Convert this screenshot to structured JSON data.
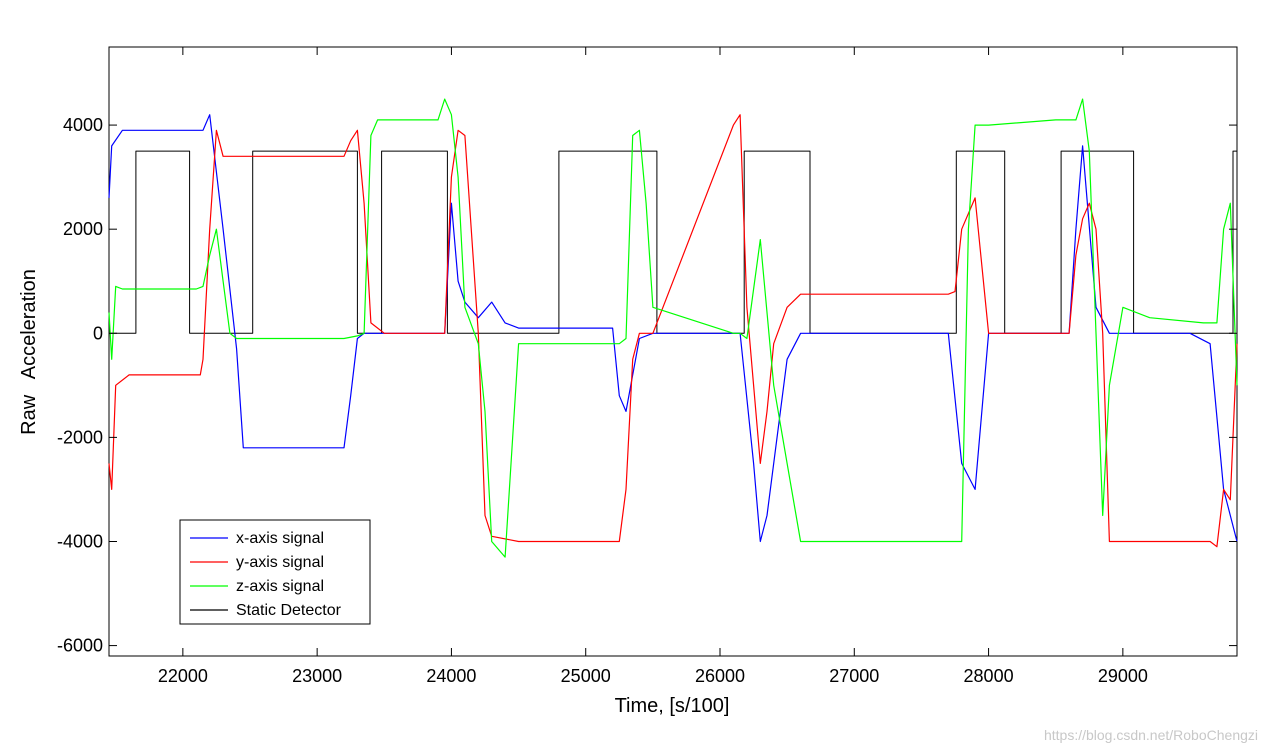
{
  "chart_data": {
    "type": "line",
    "title": "",
    "xlabel": "Time, [s/100]",
    "ylabel": "Raw   Acceleration",
    "xlim": [
      21450,
      29850
    ],
    "ylim": [
      -6200,
      5500
    ],
    "xticks": [
      22000,
      23000,
      24000,
      25000,
      26000,
      27000,
      28000,
      29000
    ],
    "yticks": [
      4000,
      2000,
      0,
      -2000,
      -4000,
      -6000
    ],
    "xtick_labels": [
      "22000",
      "23000",
      "24000",
      "25000",
      "26000",
      "27000",
      "28000",
      "29000"
    ],
    "ytick_labels": [
      "4000",
      "2000",
      "0",
      "-2000",
      "-4000",
      "-6000"
    ],
    "grid": false,
    "legend_position": "bottom-left",
    "series": [
      {
        "name": "x-axis signal",
        "color": "#0000ff",
        "x": [
          21450,
          21470,
          21550,
          21650,
          22000,
          22150,
          22200,
          22300,
          22400,
          22450,
          22600,
          23000,
          23200,
          23250,
          23300,
          23350,
          23400,
          23500,
          23900,
          23950,
          24000,
          24050,
          24100,
          24200,
          24300,
          24400,
          24500,
          24800,
          25200,
          25250,
          25300,
          25350,
          25400,
          25500,
          26000,
          26150,
          26250,
          26300,
          26350,
          26500,
          26600,
          27000,
          27500,
          27700,
          27800,
          27900,
          28000,
          28300,
          28500,
          28600,
          28650,
          28700,
          28800,
          28900,
          29000,
          29500,
          29650,
          29750,
          29850
        ],
        "y": [
          2600,
          3600,
          3900,
          3900,
          3900,
          3900,
          4200,
          2000,
          -300,
          -2200,
          -2200,
          -2200,
          -2200,
          -1200,
          -100,
          0,
          0,
          0,
          0,
          0,
          2500,
          1000,
          600,
          300,
          600,
          200,
          100,
          100,
          100,
          -1200,
          -1500,
          -800,
          -100,
          0,
          0,
          0,
          -2500,
          -4000,
          -3500,
          -500,
          0,
          0,
          0,
          0,
          -2500,
          -3000,
          0,
          0,
          0,
          0,
          2000,
          3600,
          500,
          0,
          0,
          0,
          -200,
          -3000,
          -4000
        ]
      },
      {
        "name": "y-axis signal",
        "color": "#ff0000",
        "x": [
          21450,
          21470,
          21500,
          21600,
          22000,
          22130,
          22150,
          22200,
          22250,
          22300,
          22350,
          22500,
          23000,
          23200,
          23250,
          23300,
          23350,
          23400,
          23500,
          23900,
          23950,
          24000,
          24050,
          24100,
          24200,
          24250,
          24300,
          24500,
          25200,
          25250,
          25300,
          25350,
          25400,
          25500,
          26100,
          26150,
          26200,
          26300,
          26350,
          26400,
          26500,
          26600,
          27000,
          27600,
          27700,
          27750,
          27800,
          27900,
          28000,
          28300,
          28600,
          28650,
          28700,
          28750,
          28800,
          28850,
          28900,
          29000,
          29600,
          29650,
          29700,
          29750,
          29800,
          29850
        ],
        "y": [
          -2500,
          -3000,
          -1000,
          -800,
          -800,
          -800,
          -500,
          2000,
          3900,
          3400,
          3400,
          3400,
          3400,
          3400,
          3700,
          3900,
          2500,
          200,
          0,
          0,
          0,
          3000,
          3900,
          3800,
          0,
          -3500,
          -3900,
          -4000,
          -4000,
          -4000,
          -3000,
          -500,
          0,
          0,
          4000,
          4200,
          500,
          -2500,
          -1500,
          -200,
          500,
          750,
          750,
          750,
          750,
          800,
          2000,
          2600,
          0,
          0,
          0,
          1500,
          2200,
          2500,
          2000,
          0,
          -4000,
          -4000,
          -4000,
          -4000,
          -4100,
          -3000,
          -3200,
          -200
        ]
      },
      {
        "name": "z-axis signal",
        "color": "#00ff00",
        "x": [
          21450,
          21470,
          21500,
          21550,
          22000,
          22100,
          22150,
          22200,
          22250,
          22300,
          22350,
          22400,
          23000,
          23200,
          23300,
          23350,
          23400,
          23450,
          23500,
          23900,
          23950,
          24000,
          24050,
          24100,
          24200,
          24250,
          24300,
          24400,
          24500,
          24800,
          25200,
          25250,
          25300,
          25350,
          25400,
          25450,
          25500,
          26100,
          26150,
          26200,
          26300,
          26400,
          26500,
          26600,
          27000,
          27600,
          27700,
          27800,
          27850,
          27900,
          28000,
          28500,
          28600,
          28650,
          28700,
          28750,
          28800,
          28850,
          28900,
          29000,
          29200,
          29600,
          29700,
          29750,
          29800,
          29850
        ],
        "y": [
          400,
          -500,
          900,
          850,
          850,
          850,
          900,
          1500,
          2000,
          1000,
          0,
          -100,
          -100,
          -100,
          -50,
          0,
          3800,
          4100,
          4100,
          4100,
          4500,
          4200,
          3000,
          500,
          -200,
          -1500,
          -4000,
          -4300,
          -200,
          -200,
          -200,
          -200,
          -100,
          3800,
          3900,
          2500,
          500,
          0,
          0,
          -100,
          1800,
          -1000,
          -2500,
          -4000,
          -4000,
          -4000,
          -4000,
          -4000,
          2000,
          4000,
          4000,
          4100,
          4100,
          4100,
          4500,
          3500,
          0,
          -3500,
          -1000,
          500,
          300,
          200,
          200,
          2000,
          2500,
          -1000
        ]
      },
      {
        "name": "Static Detector",
        "color": "#000000",
        "x": [
          21450,
          21650,
          21650,
          22050,
          22050,
          22520,
          22520,
          23300,
          23300,
          23480,
          23480,
          23970,
          23970,
          24800,
          24800,
          25530,
          25530,
          26180,
          26180,
          26670,
          26670,
          27760,
          27760,
          28120,
          28120,
          28540,
          28540,
          29080,
          29080,
          29820,
          29820,
          29850
        ],
        "y": [
          0,
          0,
          3500,
          3500,
          0,
          0,
          3500,
          3500,
          0,
          0,
          3500,
          3500,
          0,
          0,
          3500,
          3500,
          0,
          0,
          3500,
          3500,
          0,
          0,
          3500,
          3500,
          0,
          0,
          3500,
          3500,
          0,
          0,
          3500,
          3500
        ]
      }
    ]
  },
  "watermark": "https://blog.csdn.net/RoboChengzi"
}
